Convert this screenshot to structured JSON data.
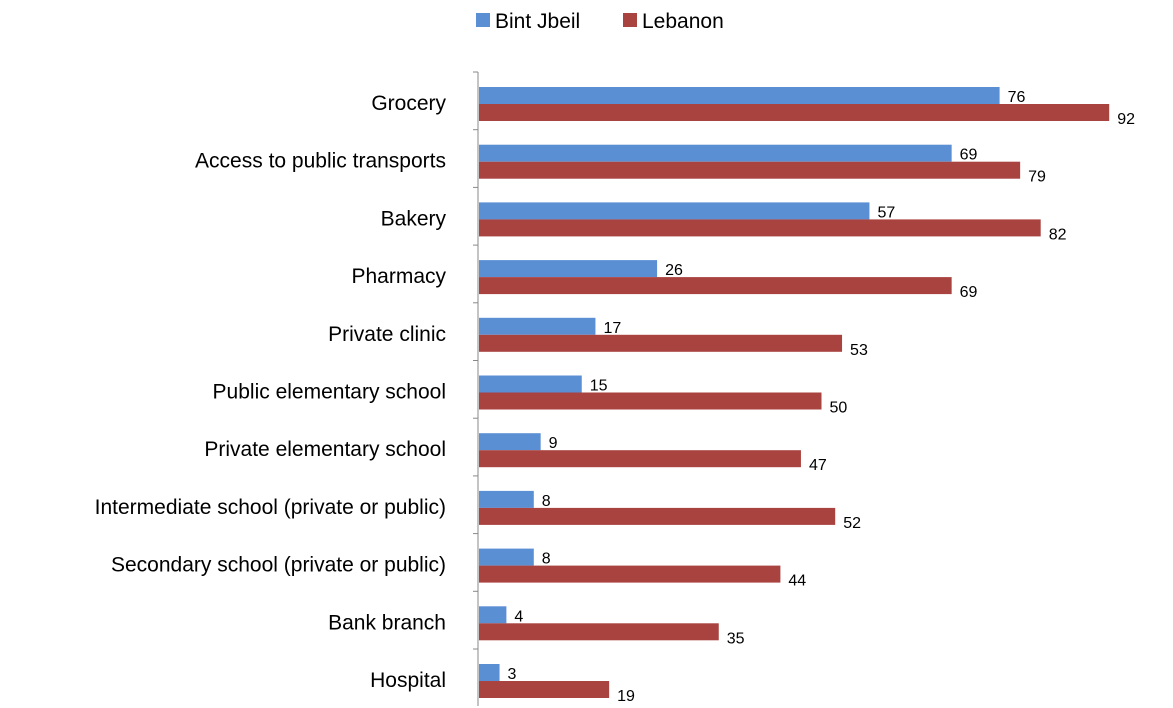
{
  "chart_data": {
    "type": "bar",
    "orientation": "horizontal",
    "categories": [
      "Grocery",
      "Access to public transports",
      "Bakery",
      "Pharmacy",
      "Private clinic",
      "Public elementary school",
      "Private elementary school",
      "Intermediate school (private or public)",
      "Secondary school (private or public)",
      "Bank branch",
      "Hospital"
    ],
    "series": [
      {
        "name": "Bint Jbeil",
        "color": "#5B8FD4",
        "values": [
          76,
          69,
          57,
          26,
          17,
          15,
          9,
          8,
          8,
          4,
          3
        ]
      },
      {
        "name": "Lebanon",
        "color": "#A9433F",
        "values": [
          92,
          79,
          82,
          69,
          53,
          50,
          47,
          52,
          44,
          35,
          19
        ]
      }
    ],
    "title": "",
    "xlabel": "",
    "ylabel": "",
    "xlim": [
      0,
      92
    ],
    "grid": false,
    "data_labels": true,
    "legend_position": "top"
  }
}
